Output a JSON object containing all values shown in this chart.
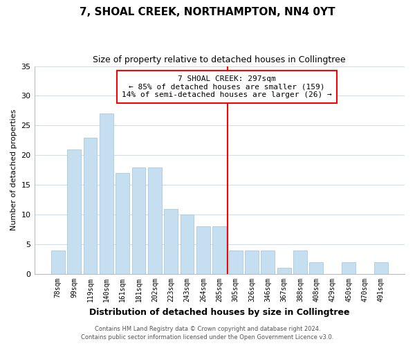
{
  "title": "7, SHOAL CREEK, NORTHAMPTON, NN4 0YT",
  "subtitle": "Size of property relative to detached houses in Collingtree",
  "xlabel": "Distribution of detached houses by size in Collingtree",
  "ylabel": "Number of detached properties",
  "bar_labels": [
    "78sqm",
    "99sqm",
    "119sqm",
    "140sqm",
    "161sqm",
    "181sqm",
    "202sqm",
    "223sqm",
    "243sqm",
    "264sqm",
    "285sqm",
    "305sqm",
    "326sqm",
    "346sqm",
    "367sqm",
    "388sqm",
    "408sqm",
    "429sqm",
    "450sqm",
    "470sqm",
    "491sqm"
  ],
  "bar_values": [
    4,
    21,
    23,
    27,
    17,
    18,
    18,
    11,
    10,
    8,
    8,
    4,
    4,
    4,
    1,
    4,
    2,
    0,
    2,
    0,
    2
  ],
  "bar_color": "#c5dff0",
  "bar_edge_color": "#a8c8e0",
  "highlight_line_color": "red",
  "annotation_title": "7 SHOAL CREEK: 297sqm",
  "annotation_line1": "← 85% of detached houses are smaller (159)",
  "annotation_line2": "14% of semi-detached houses are larger (26) →",
  "ylim": [
    0,
    35
  ],
  "yticks": [
    0,
    5,
    10,
    15,
    20,
    25,
    30,
    35
  ],
  "footer_line1": "Contains HM Land Registry data © Crown copyright and database right 2024.",
  "footer_line2": "Contains public sector information licensed under the Open Government Licence v3.0.",
  "background_color": "#ffffff",
  "grid_color": "#ccdded"
}
